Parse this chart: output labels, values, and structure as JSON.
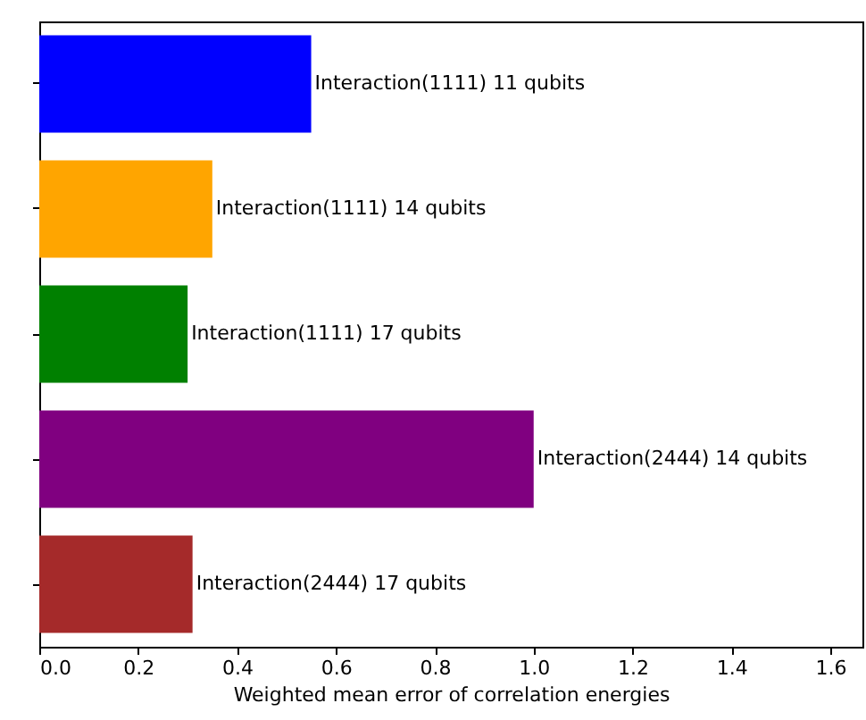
{
  "chart_data": {
    "type": "bar",
    "orientation": "horizontal",
    "xlabel": "Weighted mean error of correlation energies",
    "categories": [
      "Interaction(1111) 11 qubits",
      "Interaction(1111) 14 qubits",
      "Interaction(1111) 17 qubits",
      "Interaction(2444) 14 qubits",
      "Interaction(2444) 17 qubits"
    ],
    "values": [
      0.55,
      0.35,
      0.3,
      1.0,
      0.31
    ],
    "colors": [
      "#0000ff",
      "#ffa500",
      "#008000",
      "#800080",
      "#a52a2a"
    ],
    "xlim": [
      0,
      1.665
    ],
    "xticks": [
      {
        "value": 0,
        "label": "0.0"
      },
      0.2,
      0.4,
      0.6,
      0.8,
      {
        "value": 1,
        "label": "1.0"
      },
      1.2,
      1.4,
      1.6
    ],
    "tick_labels": "x",
    "grid": false
  }
}
